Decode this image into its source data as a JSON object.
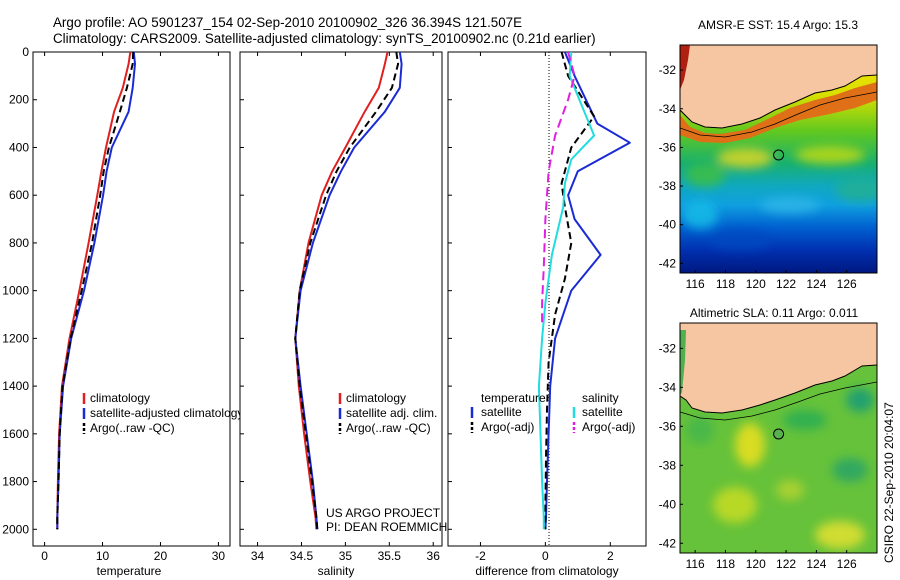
{
  "title_line1": "Argo profile: AO 5901237_154 02-Sep-2010 20100902_326 36.394S 121.507E",
  "title_line2": "Climatology: CARS2009. Satellite-adjusted climatology: synTS_20100902.nc (0.21d earlier)",
  "side_label": "CSIRO 22-Sep-2010 20:04:07",
  "colors": {
    "climatology": "#e02020",
    "satellite": "#1a2bd6",
    "argo": "#000000",
    "sal_satellite": "#22dde0",
    "sal_argo": "#e020e0",
    "land": "#f6c5a2"
  },
  "chart_data": [
    {
      "type": "line",
      "name": "temperature-profile",
      "xlabel": "temperature",
      "ylabel": "",
      "xlim": [
        -2,
        32
      ],
      "ylim": [
        2070,
        0
      ],
      "xticks": [
        0,
        10,
        20,
        30
      ],
      "yticks": [
        0,
        200,
        400,
        600,
        800,
        1000,
        1200,
        1400,
        1600,
        1800,
        2000
      ],
      "y_reversed": true,
      "legend": [
        "climatology",
        "satellite-adjusted climatology",
        "Argo(..raw -QC)"
      ],
      "series": [
        {
          "name": "climatology",
          "color": "#e02020",
          "dash": "",
          "x": [
            14.8,
            14.5,
            13.5,
            12.0,
            10.6,
            9.8,
            9.1,
            7.6,
            6.0,
            4.3,
            3.0,
            2.5,
            2.3,
            2.2,
            2.2
          ],
          "y": [
            0,
            50,
            150,
            250,
            400,
            500,
            600,
            800,
            1000,
            1200,
            1400,
            1600,
            1800,
            1950,
            2000
          ]
        },
        {
          "name": "satellite-adjusted climatology",
          "color": "#1a2bd6",
          "dash": "",
          "x": [
            15.4,
            15.6,
            15.2,
            14.5,
            11.6,
            10.7,
            10.1,
            8.6,
            6.8,
            4.6,
            3.2,
            2.6,
            2.4,
            2.2,
            2.2
          ],
          "y": [
            0,
            50,
            150,
            250,
            400,
            500,
            600,
            800,
            1000,
            1200,
            1400,
            1600,
            1800,
            1950,
            2000
          ]
        },
        {
          "name": "Argo(..raw -QC)",
          "color": "#000000",
          "dash": "7,4",
          "x": [
            15.3,
            15.2,
            14.2,
            13.0,
            11.1,
            10.2,
            9.6,
            8.2,
            6.4,
            4.5,
            3.1,
            2.6,
            2.4,
            2.2,
            2.2
          ],
          "y": [
            0,
            50,
            150,
            250,
            400,
            500,
            600,
            800,
            1000,
            1200,
            1400,
            1600,
            1800,
            1950,
            2000
          ]
        }
      ]
    },
    {
      "type": "line",
      "name": "salinity-profile",
      "xlabel": "salinity",
      "ylabel": "",
      "xlim": [
        33.8,
        36.1
      ],
      "ylim": [
        2070,
        0
      ],
      "xticks": [
        34,
        34.5,
        35,
        35.5,
        36
      ],
      "y_reversed": true,
      "legend": [
        "climatology",
        "satellite adj. clim.",
        "Argo(..raw -QC)"
      ],
      "annotation": [
        "US ARGO PROJECT",
        "PI: DEAN ROEMMICH"
      ],
      "series": [
        {
          "name": "climatology",
          "color": "#e02020",
          "dash": "",
          "x": [
            35.48,
            35.45,
            35.38,
            35.22,
            35.0,
            34.85,
            34.73,
            34.58,
            34.48,
            34.43,
            34.47,
            34.53,
            34.6,
            34.66,
            34.67
          ],
          "y": [
            0,
            50,
            150,
            250,
            400,
            500,
            600,
            800,
            1000,
            1200,
            1400,
            1600,
            1800,
            1950,
            2000
          ]
        },
        {
          "name": "satellite adj. clim.",
          "color": "#1a2bd6",
          "dash": "",
          "x": [
            35.62,
            35.64,
            35.62,
            35.45,
            35.1,
            34.95,
            34.82,
            34.63,
            34.49,
            34.43,
            34.49,
            34.56,
            34.63,
            34.67,
            34.68
          ],
          "y": [
            0,
            50,
            150,
            250,
            400,
            500,
            600,
            800,
            1000,
            1200,
            1400,
            1600,
            1800,
            1950,
            2000
          ]
        },
        {
          "name": "Argo(..raw -QC)",
          "color": "#000000",
          "dash": "7,4",
          "x": [
            35.58,
            35.6,
            35.53,
            35.35,
            35.05,
            34.9,
            34.78,
            34.6,
            34.48,
            34.43,
            34.48,
            34.55,
            34.62,
            34.67,
            34.68
          ],
          "y": [
            0,
            50,
            150,
            250,
            400,
            500,
            600,
            800,
            1000,
            1200,
            1400,
            1600,
            1800,
            1950,
            2000
          ]
        }
      ]
    },
    {
      "type": "line",
      "name": "difference-profile",
      "xlabel": "difference from climatology",
      "ylabel": "",
      "xlim": [
        -3,
        3.1
      ],
      "ylim": [
        2070,
        0
      ],
      "xticks": [
        -2,
        0,
        2
      ],
      "y_reversed": true,
      "legend_temperature_header": "temperature",
      "legend_salinity_header": "salinity",
      "legend": [
        "satellite",
        "Argo(-adj)",
        "satellite",
        "Argo(-adj)"
      ],
      "series": [
        {
          "name": "satellite",
          "group": "temperature",
          "color": "#1a2bd6",
          "dash": "",
          "x": [
            0.6,
            0.9,
            1.6,
            2.6,
            1.0,
            0.7,
            0.9,
            1.7,
            0.8,
            0.3,
            0.15,
            0.1,
            0.05,
            0.02,
            0.0
          ],
          "y": [
            0,
            100,
            300,
            380,
            500,
            600,
            700,
            850,
            1000,
            1200,
            1400,
            1600,
            1800,
            1950,
            2000
          ]
        },
        {
          "name": "Argo(-adj)",
          "group": "temperature",
          "color": "#000000",
          "dash": "7,4",
          "x": [
            0.5,
            0.7,
            1.5,
            0.8,
            0.5,
            0.6,
            0.8,
            0.6,
            0.3,
            0.1,
            0.05,
            0.02,
            0.0,
            0.0
          ],
          "y": [
            0,
            100,
            270,
            400,
            550,
            650,
            800,
            950,
            1100,
            1300,
            1500,
            1700,
            1900,
            2000
          ]
        },
        {
          "name": "satellite",
          "group": "salinity",
          "color": "#22dde0",
          "dash": "",
          "x": [
            0.8,
            0.75,
            1.2,
            1.5,
            0.8,
            0.6,
            0.55,
            0.2,
            0.0,
            -0.1,
            -0.2,
            -0.15,
            -0.1,
            -0.05,
            -0.05
          ],
          "y": [
            0,
            100,
            250,
            350,
            450,
            550,
            650,
            850,
            1050,
            1200,
            1400,
            1600,
            1800,
            1950,
            2000
          ]
        },
        {
          "name": "Argo(-adj)",
          "group": "salinity",
          "color": "#e020e0",
          "dash": "9,5",
          "x": [
            0.7,
            0.9,
            0.7,
            0.3,
            0.1,
            0.0,
            -0.05,
            -0.1,
            -0.1
          ],
          "y": [
            0,
            100,
            200,
            350,
            500,
            700,
            900,
            1050,
            1150
          ]
        }
      ]
    },
    {
      "type": "heatmap",
      "name": "sst-map",
      "title": "AMSR-E SST: 15.4 Argo: 15.3",
      "xlim": [
        115,
        128
      ],
      "ylim": [
        -42.5,
        -30.7
      ],
      "xticks": [
        116,
        118,
        120,
        122,
        124,
        126
      ],
      "yticks": [
        -32,
        -34,
        -36,
        -38,
        -40,
        -42
      ],
      "marker": {
        "lon": 121.507,
        "lat": -36.394
      }
    },
    {
      "type": "heatmap",
      "name": "sla-map",
      "title": "Altimetric SLA: 0.11 Argo: 0.011",
      "xlim": [
        115,
        128
      ],
      "ylim": [
        -42.5,
        -30.7
      ],
      "xticks": [
        116,
        118,
        120,
        122,
        124,
        126
      ],
      "yticks": [
        -32,
        -34,
        -36,
        -38,
        -40,
        -42
      ],
      "marker": {
        "lon": 121.507,
        "lat": -36.394
      }
    }
  ]
}
